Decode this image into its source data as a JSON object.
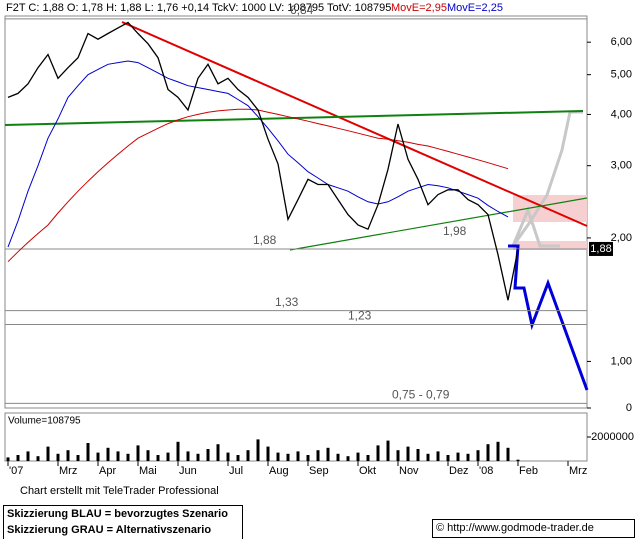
{
  "chart_data": [
    {
      "type": "line",
      "title": "F2T C: 1,88 O: 1,78 H: 1,88 L: 1,76 +0,14 TckV: 1000 LV: 108795 TotV: 108795",
      "log_scale": true,
      "categories": [
        "'07",
        null,
        null,
        null,
        null,
        "Mrz",
        null,
        null,
        null,
        "Apr",
        null,
        null,
        null,
        "Mai",
        null,
        null,
        null,
        "Jun",
        null,
        null,
        null,
        null,
        "Jul",
        null,
        null,
        null,
        "Aug",
        null,
        null,
        null,
        "Sep",
        null,
        null,
        null,
        null,
        "Okt",
        null,
        null,
        null,
        "Nov",
        null,
        null,
        null,
        null,
        "Dez",
        null,
        null,
        "'08",
        null,
        null,
        null,
        "Feb",
        null,
        null,
        null,
        null,
        "Mrz",
        null
      ],
      "series": [
        {
          "color": "#000000",
          "values": [
            4.4,
            4.5,
            4.75,
            5.2,
            5.6,
            4.9,
            5.2,
            5.5,
            6.3,
            6.1,
            6.3,
            6.5,
            6.7,
            6.3,
            5.95,
            5.5,
            4.6,
            4.4,
            4.1,
            4.9,
            5.3,
            4.75,
            4.9,
            4.6,
            4.4,
            4.1,
            3.48,
            3.03,
            2.22,
            2.48,
            2.78,
            2.7,
            2.7,
            2.48,
            2.28,
            2.15,
            2.1,
            2.41,
            2.94,
            3.79,
            3.11,
            2.78,
            2.41,
            2.55,
            2.62,
            2.62,
            2.48,
            2.41,
            2.28,
            1.82,
            1.41,
            1.88,
            null,
            null,
            null,
            null,
            null,
            null
          ]
        },
        {
          "name": "MovE=2,95",
          "color": "#cc0000",
          "values": [
            1.75,
            1.85,
            1.95,
            2.05,
            2.15,
            2.3,
            2.45,
            2.6,
            2.75,
            2.9,
            3.05,
            3.2,
            3.35,
            3.5,
            3.6,
            3.7,
            3.8,
            3.88,
            3.95,
            4.0,
            4.05,
            4.08,
            4.1,
            4.12,
            4.12,
            4.1,
            4.05,
            4.0,
            3.95,
            3.9,
            3.85,
            3.8,
            3.75,
            3.7,
            3.65,
            3.6,
            3.55,
            3.5,
            3.48,
            3.45,
            3.42,
            3.38,
            3.35,
            3.3,
            3.25,
            3.2,
            3.15,
            3.1,
            3.05,
            3.0,
            2.95,
            null,
            null,
            null,
            null,
            null,
            null,
            null
          ]
        },
        {
          "name": "MovE=2,25",
          "color": "#0000cc",
          "values": [
            1.9,
            2.2,
            2.6,
            3.0,
            3.5,
            3.9,
            4.4,
            4.7,
            5.0,
            5.15,
            5.3,
            5.35,
            5.4,
            5.35,
            5.2,
            5.05,
            4.9,
            4.8,
            4.7,
            4.65,
            4.6,
            4.55,
            4.5,
            4.35,
            4.2,
            3.95,
            3.7,
            3.45,
            3.2,
            3.05,
            2.9,
            2.8,
            2.7,
            2.65,
            2.6,
            2.52,
            2.45,
            2.42,
            2.45,
            2.52,
            2.6,
            2.65,
            2.7,
            2.68,
            2.65,
            2.6,
            2.55,
            2.5,
            2.4,
            2.32,
            2.25,
            null,
            null,
            null,
            null,
            null,
            null,
            null
          ]
        }
      ],
      "ylim": [
        0.77,
        6.95
      ],
      "yticks": [
        {
          "value": 6,
          "label": "6,00"
        },
        {
          "value": 5,
          "label": "5,00"
        },
        {
          "value": 4,
          "label": "4,00"
        },
        {
          "value": 3,
          "label": "3,00"
        },
        {
          "value": 2,
          "label": "2,00"
        },
        {
          "value": 1,
          "label": "1,00"
        },
        0
      ],
      "price_tag": {
        "value": 1.88,
        "label": "1,88"
      },
      "annotations": [
        {
          "value": 6.84,
          "label": "6,84",
          "line": true
        },
        {
          "value": 1.88,
          "label": "1,88",
          "line": true
        },
        {
          "value": 1.33,
          "label": "1,33",
          "line": true
        },
        {
          "value": 1.23,
          "label": "1,23",
          "line": true
        },
        {
          "value": 1.98,
          "label": "1,98",
          "line": false
        },
        {
          "value": 0.79,
          "label": "0,75 - 0,79",
          "line": true
        }
      ]
    },
    {
      "type": "bar",
      "title": "Volume=108795",
      "color": "#000000",
      "values": [
        300000,
        500000,
        800000,
        400000,
        1200000,
        600000,
        900000,
        500000,
        1500000,
        700000,
        1100000,
        800000,
        600000,
        1300000,
        900000,
        500000,
        700000,
        1600000,
        800000,
        600000,
        1000000,
        1400000,
        700000,
        500000,
        900000,
        1800000,
        1200000,
        700000,
        600000,
        800000,
        500000,
        900000,
        1100000,
        600000,
        400000,
        700000,
        500000,
        1300000,
        1700000,
        900000,
        1200000,
        1000000,
        600000,
        800000,
        500000,
        700000,
        600000,
        900000,
        1400000,
        1600000,
        1100000,
        108795,
        null,
        null,
        null,
        null,
        null,
        null
      ],
      "ylim": [
        0,
        4000000
      ],
      "yticks": [
        2000000
      ]
    }
  ],
  "footer": {
    "credit": "Chart erstellt mit TeleTrader Professional",
    "legend_blue": "Skizzierung BLAU = bevorzugtes Szenario",
    "legend_gray": "Skizzierung GRAU = Alternativszenario",
    "copyright": "© http://www.godmode-trader.de"
  }
}
